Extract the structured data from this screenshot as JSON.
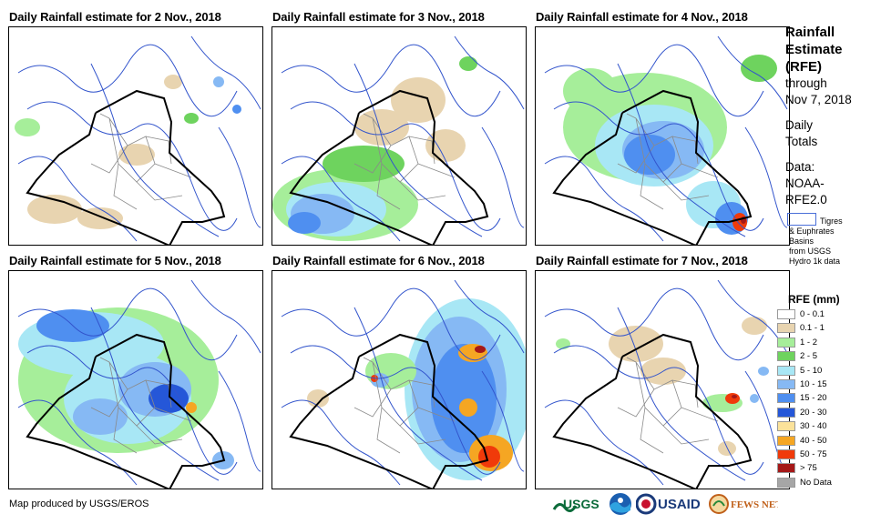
{
  "panels": [
    {
      "title": "Daily Rainfall estimate for 2 Nov., 2018"
    },
    {
      "title": "Daily Rainfall estimate for 3 Nov., 2018"
    },
    {
      "title": "Daily Rainfall estimate for 4 Nov., 2018"
    },
    {
      "title": "Daily Rainfall estimate for 5 Nov., 2018"
    },
    {
      "title": "Daily Rainfall estimate for 6 Nov., 2018"
    },
    {
      "title": "Daily Rainfall estimate for 7 Nov., 2018"
    }
  ],
  "legend": {
    "title_line1": "Rainfall",
    "title_line2": "Estimate",
    "title_line3": "(RFE)",
    "through": "through",
    "date": "Nov 7, 2018",
    "daily": "Daily",
    "totals": "Totals",
    "data_label": "Data:",
    "source1": "NOAA-",
    "source2": "RFE2.0",
    "basin_text_1": "Tigres",
    "basin_text_2": "& Euphrates",
    "basin_text_3": "Basins",
    "basin_text_4": "from USGS",
    "basin_text_5": "Hydro 1k data",
    "rfe_heading": "RFE (mm)",
    "classes": [
      {
        "label": "0 - 0.1",
        "color": "#ffffff"
      },
      {
        "label": "0.1 - 1",
        "color": "#e8d4b0"
      },
      {
        "label": "1 - 2",
        "color": "#a6ee9a"
      },
      {
        "label": "2 - 5",
        "color": "#6ed35e"
      },
      {
        "label": "5 - 10",
        "color": "#a8e7f5"
      },
      {
        "label": "10 - 15",
        "color": "#86b9f4"
      },
      {
        "label": "15 - 20",
        "color": "#4f8ff0"
      },
      {
        "label": "20 - 30",
        "color": "#2557d8"
      },
      {
        "label": "30 - 40",
        "color": "#fbe29a"
      },
      {
        "label": "40 - 50",
        "color": "#f5a623"
      },
      {
        "label": "50 - 75",
        "color": "#f03a0a"
      },
      {
        "label": "> 75",
        "color": "#a51818"
      },
      {
        "label": "No Data",
        "color": "#a6a6a6"
      }
    ]
  },
  "footer": {
    "credit": "Map produced by USGS/EROS",
    "logo_usgs": "USGS",
    "logo_usaid": "USAID",
    "logo_fews": "FEWS NET"
  },
  "colors": {
    "border": "#000000",
    "rivers": "#3355cc",
    "admin": "#8a8a8a"
  }
}
